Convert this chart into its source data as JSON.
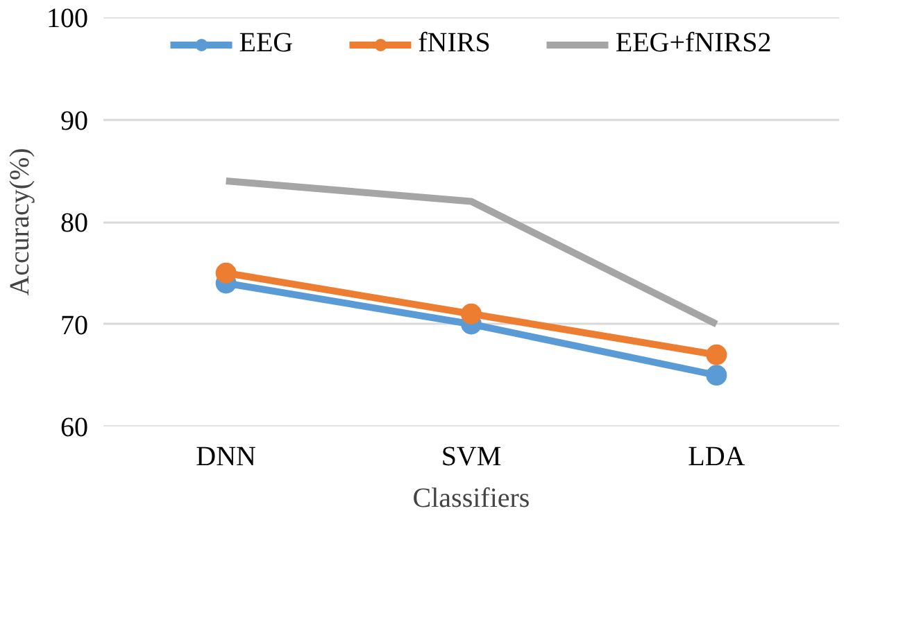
{
  "chart_data": {
    "type": "line",
    "xlabel": "Classifiers",
    "ylabel": "Accuracy(%)",
    "categories": [
      "DNN",
      "SVM",
      "LDA"
    ],
    "series": [
      {
        "name": "EEG",
        "color": "#5b9bd5",
        "values": [
          74,
          70,
          65
        ]
      },
      {
        "name": "fNIRS",
        "color": "#ed7d31",
        "values": [
          75,
          71,
          67
        ]
      },
      {
        "name": "EEG+fNIRS2",
        "color": "#a5a5a5",
        "values": [
          84,
          82,
          70
        ],
        "marker": "none"
      }
    ],
    "ylim": [
      60,
      100
    ],
    "yticks": [
      60,
      70,
      80,
      90,
      100
    ],
    "grid": "y",
    "legend": "top",
    "marker": "circle",
    "line_style": "solid"
  }
}
